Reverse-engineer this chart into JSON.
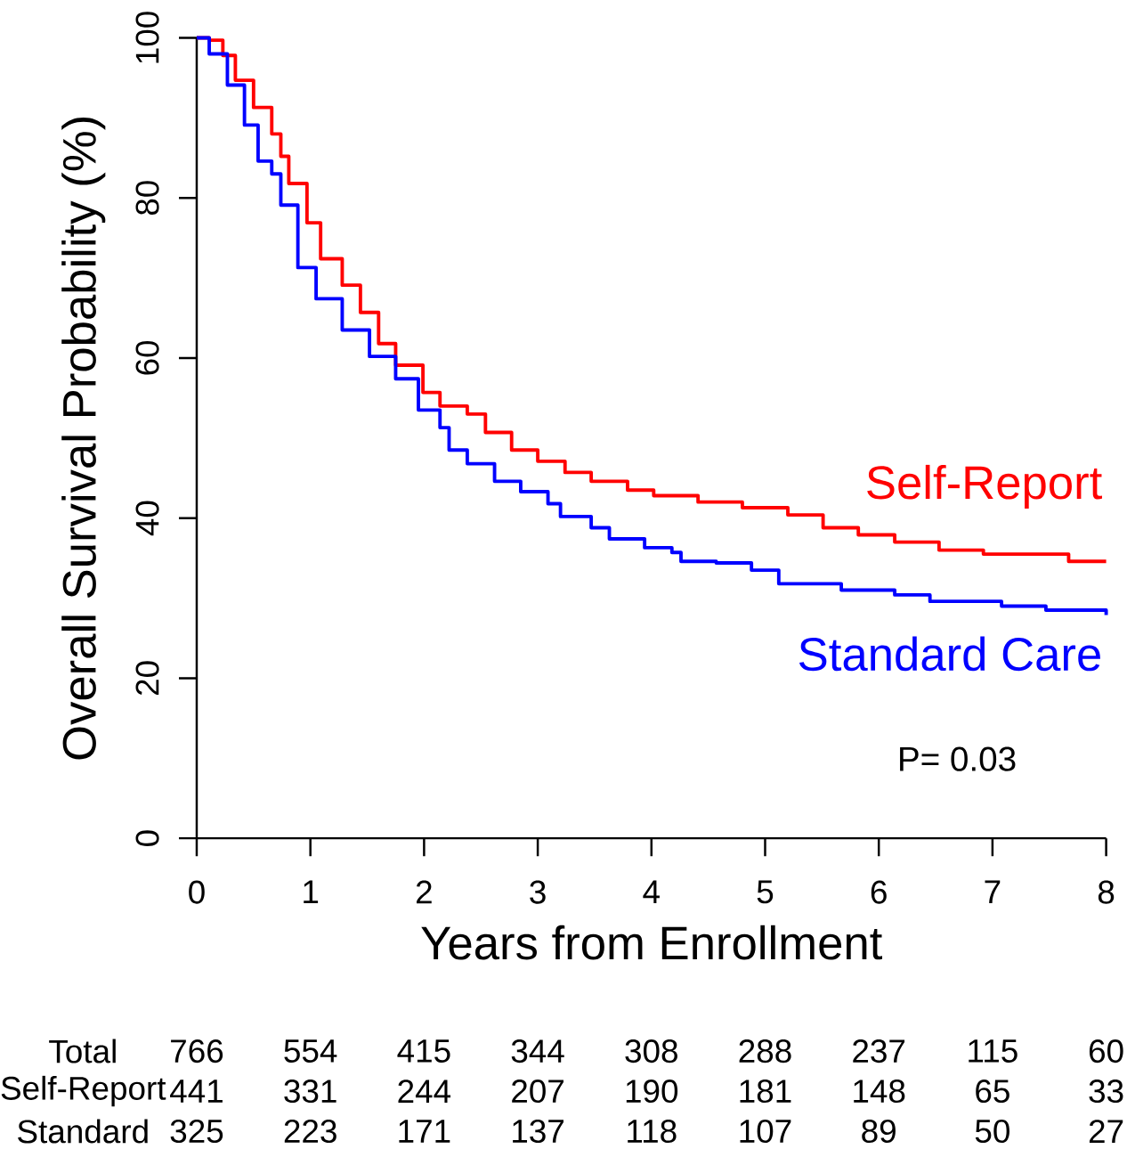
{
  "chart_data": {
    "type": "step",
    "xlabel": "Years from Enrollment",
    "ylabel": "Overall Survival Probability (%)",
    "xlim": [
      0,
      8
    ],
    "ylim": [
      0,
      100
    ],
    "xticks": [
      0,
      1,
      2,
      3,
      4,
      5,
      6,
      7,
      8
    ],
    "yticks": [
      0,
      20,
      40,
      60,
      80,
      100
    ],
    "series": [
      {
        "name": "Self-Report",
        "color": "#ff0000",
        "x": [
          0,
          0.11,
          0.23,
          0.34,
          0.5,
          0.66,
          0.74,
          0.81,
          0.97,
          1.09,
          1.28,
          1.44,
          1.6,
          1.75,
          1.99,
          2.14,
          2.38,
          2.54,
          2.77,
          3.0,
          3.24,
          3.47,
          3.79,
          4.02,
          4.41,
          4.8,
          5.2,
          5.51,
          5.82,
          6.14,
          6.53,
          6.92,
          7.55,
          7.67,
          8.0
        ],
        "values": [
          100,
          99.7,
          97.8,
          94.7,
          91.3,
          88.0,
          85.2,
          81.8,
          76.9,
          72.4,
          69.1,
          65.7,
          61.8,
          59.1,
          55.7,
          54.0,
          53.0,
          50.7,
          48.5,
          47.1,
          45.7,
          44.6,
          43.5,
          42.8,
          42.0,
          41.3,
          40.4,
          38.8,
          37.9,
          37.0,
          36.0,
          35.5,
          35.5,
          34.6,
          34.6
        ]
      },
      {
        "name": "Standard Care",
        "color": "#0000ff",
        "x": [
          0,
          0.11,
          0.27,
          0.42,
          0.54,
          0.66,
          0.74,
          0.89,
          1.05,
          1.28,
          1.52,
          1.75,
          1.95,
          2.14,
          2.22,
          2.38,
          2.62,
          2.85,
          3.09,
          3.2,
          3.47,
          3.63,
          3.94,
          4.18,
          4.26,
          4.57,
          4.88,
          5.12,
          5.67,
          6.14,
          6.45,
          7.08,
          7.47,
          8.0
        ],
        "values": [
          100,
          98.0,
          94.1,
          89.1,
          84.6,
          83.0,
          79.1,
          71.3,
          67.4,
          63.5,
          60.2,
          57.4,
          53.5,
          51.3,
          48.5,
          46.8,
          44.6,
          43.3,
          41.8,
          40.2,
          38.8,
          37.4,
          36.3,
          35.7,
          34.6,
          34.4,
          33.5,
          31.8,
          31.0,
          30.4,
          29.6,
          29.0,
          28.5,
          27.9
        ]
      }
    ],
    "annotations": [
      "P= 0.03",
      "Total",
      "766",
      "554",
      "415",
      "344",
      "308",
      "288",
      "237",
      "115",
      "60",
      "Self-Report",
      "441",
      "331",
      "244",
      "207",
      "190",
      "181",
      "148",
      "65",
      "33",
      "Standard",
      "325",
      "223",
      "171",
      "137",
      "118",
      "107",
      "89",
      "50",
      "27"
    ]
  }
}
